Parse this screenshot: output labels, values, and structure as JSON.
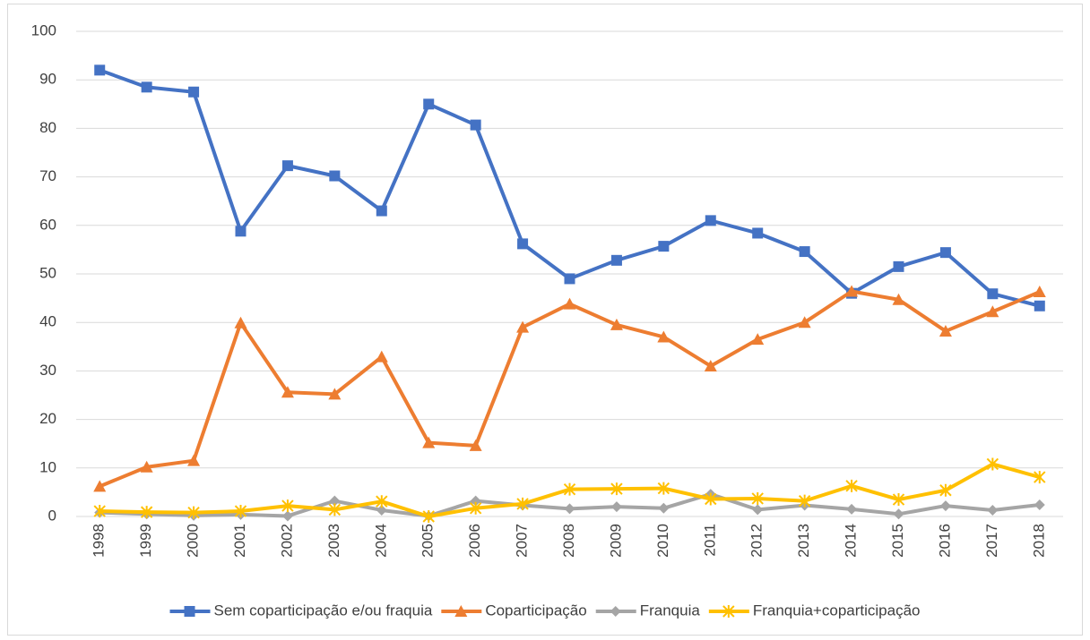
{
  "chart_data": {
    "type": "line",
    "categories": [
      "1998",
      "1999",
      "2000",
      "2001",
      "2002",
      "2003",
      "2004",
      "2005",
      "2006",
      "2007",
      "2008",
      "2009",
      "2010",
      "2011",
      "2012",
      "2013",
      "2014",
      "2015",
      "2016",
      "2017",
      "2018"
    ],
    "series": [
      {
        "name": "Sem coparticipação e/ou fraquia",
        "color": "#4472c4",
        "marker": "square",
        "values": [
          92,
          88.5,
          87.5,
          58.8,
          72.3,
          70.2,
          63,
          85,
          80.7,
          56.2,
          49,
          52.8,
          55.7,
          61,
          58.4,
          54.6,
          46,
          51.5,
          54.4,
          45.9,
          43.4
        ]
      },
      {
        "name": "Coparticipação",
        "color": "#ed7d31",
        "marker": "triangle",
        "values": [
          6.2,
          10.2,
          11.5,
          39.9,
          25.6,
          25.2,
          32.9,
          15.2,
          14.6,
          39,
          43.8,
          39.5,
          37,
          31,
          36.5,
          40,
          46.4,
          44.7,
          38.2,
          42.2,
          46.3
        ]
      },
      {
        "name": "Franquia",
        "color": "#a5a5a5",
        "marker": "diamond",
        "values": [
          0.8,
          0.5,
          0.2,
          0.4,
          0.1,
          3.2,
          1.3,
          0.1,
          3.2,
          2.3,
          1.6,
          2,
          1.7,
          4.6,
          1.4,
          2.3,
          1.5,
          0.5,
          2.2,
          1.3,
          2.4
        ]
      },
      {
        "name": "Franquia+coparticipação",
        "color": "#ffc000",
        "marker": "star",
        "values": [
          1.1,
          0.9,
          0.8,
          1.1,
          2.2,
          1.4,
          3.1,
          0,
          1.7,
          2.6,
          5.6,
          5.7,
          5.8,
          3.6,
          3.7,
          3.2,
          6.3,
          3.5,
          5.4,
          10.8,
          8.1
        ]
      }
    ],
    "ylim": [
      0,
      100
    ],
    "yticks": [
      0,
      10,
      20,
      30,
      40,
      50,
      60,
      70,
      80,
      90,
      100
    ],
    "grid": true,
    "legend": "bottom"
  }
}
